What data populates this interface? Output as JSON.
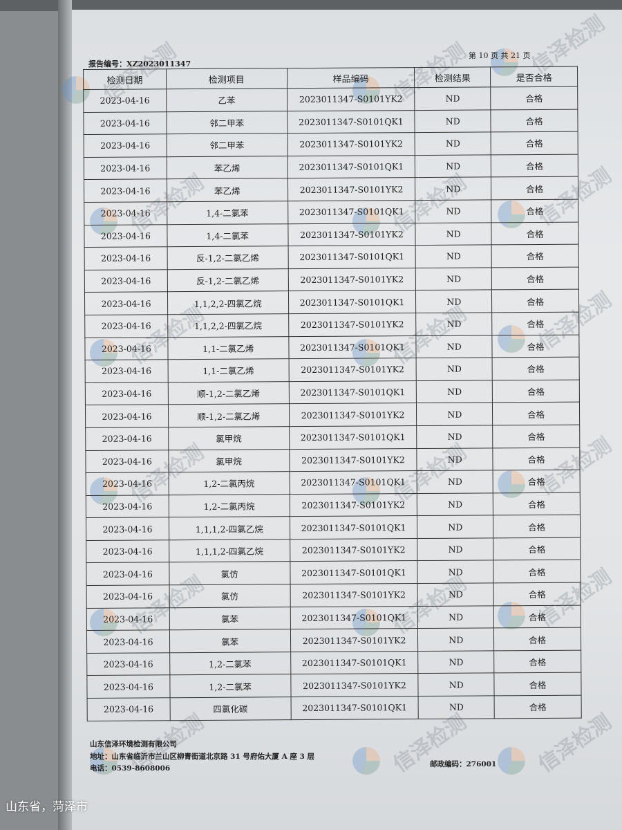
{
  "header": {
    "report_number": "报告编号：XZ2023011347",
    "page_info": "第 10 页 共 21 页"
  },
  "table": {
    "columns": [
      "检测日期",
      "检测项目",
      "样品编码",
      "检测结果",
      "是否合格"
    ],
    "rows": [
      [
        "2023-04-16",
        "乙苯",
        "2023011347-S0101YK2",
        "ND",
        "合格"
      ],
      [
        "2023-04-16",
        "邻二甲苯",
        "2023011347-S0101QK1",
        "ND",
        "合格"
      ],
      [
        "2023-04-16",
        "邻二甲苯",
        "2023011347-S0101YK2",
        "ND",
        "合格"
      ],
      [
        "2023-04-16",
        "苯乙烯",
        "2023011347-S0101QK1",
        "ND",
        "合格"
      ],
      [
        "2023-04-16",
        "苯乙烯",
        "2023011347-S0101YK2",
        "ND",
        "合格"
      ],
      [
        "2023-04-16",
        "1,4-二氯苯",
        "2023011347-S0101QK1",
        "ND",
        "合格"
      ],
      [
        "2023-04-16",
        "1,4-二氯苯",
        "2023011347-S0101YK2",
        "ND",
        "合格"
      ],
      [
        "2023-04-16",
        "反-1,2-二氯乙烯",
        "2023011347-S0101QK1",
        "ND",
        "合格"
      ],
      [
        "2023-04-16",
        "反-1,2-二氯乙烯",
        "2023011347-S0101YK2",
        "ND",
        "合格"
      ],
      [
        "2023-04-16",
        "1,1,2,2-四氯乙烷",
        "2023011347-S0101QK1",
        "ND",
        "合格"
      ],
      [
        "2023-04-16",
        "1,1,2,2-四氯乙烷",
        "2023011347-S0101YK2",
        "ND",
        "合格"
      ],
      [
        "2023-04-16",
        "1,1-二氯乙烯",
        "2023011347-S0101QK1",
        "ND",
        "合格"
      ],
      [
        "2023-04-16",
        "1,1-二氯乙烯",
        "2023011347-S0101YK2",
        "ND",
        "合格"
      ],
      [
        "2023-04-16",
        "顺-1,2-二氯乙烯",
        "2023011347-S0101QK1",
        "ND",
        "合格"
      ],
      [
        "2023-04-16",
        "顺-1,2-二氯乙烯",
        "2023011347-S0101YK2",
        "ND",
        "合格"
      ],
      [
        "2023-04-16",
        "氯甲烷",
        "2023011347-S0101QK1",
        "ND",
        "合格"
      ],
      [
        "2023-04-16",
        "氯甲烷",
        "2023011347-S0101YK2",
        "ND",
        "合格"
      ],
      [
        "2023-04-16",
        "1,2-二氯丙烷",
        "2023011347-S0101QK1",
        "ND",
        "合格"
      ],
      [
        "2023-04-16",
        "1,2-二氯丙烷",
        "2023011347-S0101YK2",
        "ND",
        "合格"
      ],
      [
        "2023-04-16",
        "1,1,1,2-四氯乙烷",
        "2023011347-S0101QK1",
        "ND",
        "合格"
      ],
      [
        "2023-04-16",
        "1,1,1,2-四氯乙烷",
        "2023011347-S0101YK2",
        "ND",
        "合格"
      ],
      [
        "2023-04-16",
        "氯仿",
        "2023011347-S0101QK1",
        "ND",
        "合格"
      ],
      [
        "2023-04-16",
        "氯仿",
        "2023011347-S0101YK2",
        "ND",
        "合格"
      ],
      [
        "2023-04-16",
        "氯苯",
        "2023011347-S0101QK1",
        "ND",
        "合格"
      ],
      [
        "2023-04-16",
        "氯苯",
        "2023011347-S0101YK2",
        "ND",
        "合格"
      ],
      [
        "2023-04-16",
        "1,2-二氯苯",
        "2023011347-S0101QK1",
        "ND",
        "合格"
      ],
      [
        "2023-04-16",
        "1,2-二氯苯",
        "2023011347-S0101YK2",
        "ND",
        "合格"
      ],
      [
        "2023-04-16",
        "四氯化碳",
        "2023011347-S0101QK1",
        "ND",
        "合格"
      ]
    ]
  },
  "watermark": "信泽检测",
  "footer": {
    "company": "山东信泽环境检测有限公司",
    "address": "地址：山东省临沂市兰山区柳青街道北京路 31 号府佑大厦 A 座 3 层",
    "phone": "电话：0539-8608006",
    "postcode": "邮政编码：276001"
  },
  "location_overlay": "山东省，菏泽市"
}
